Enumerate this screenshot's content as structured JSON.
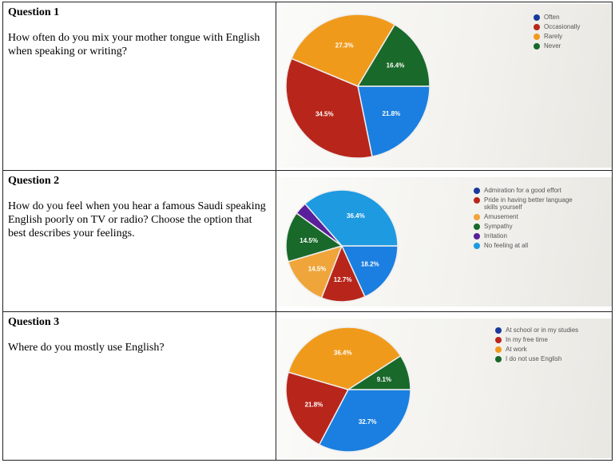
{
  "questions": [
    {
      "title": "Question 1",
      "text": "How often do you mix your mother tongue with English when speaking or writing?"
    },
    {
      "title": "Question 2",
      "text": "How do you feel when you hear a famous Saudi speaking English poorly on TV or radio? Choose the option that best describes your feelings."
    },
    {
      "title": "Question 3",
      "text": "Where do you mostly use English?"
    }
  ],
  "chart_data": [
    {
      "type": "pie",
      "legend": "top-right",
      "labels": [
        "Often",
        "Occasionally",
        "Rarely",
        "Never"
      ],
      "values": [
        21.8,
        34.5,
        27.3,
        16.4
      ],
      "data_labels": [
        "21.8%",
        "34.5%",
        "27.3%",
        "16.4%"
      ],
      "colors": [
        "#1a7fe0",
        "#b8261b",
        "#f09a1c",
        "#19692a"
      ],
      "legend_colors": [
        "#1a3a9c",
        "#b8261b",
        "#f09a1c",
        "#19692a"
      ]
    },
    {
      "type": "pie",
      "legend": "top-right",
      "labels": [
        "Admiration for a good effort",
        "Pride in having better language skills yourself",
        "Amusement",
        "Sympathy",
        "Irritation",
        "No feeling at all"
      ],
      "values": [
        18.2,
        12.7,
        14.5,
        14.5,
        3.6,
        36.4
      ],
      "data_labels": [
        "18.2%",
        "12.7%",
        "14.5%",
        "14.5%",
        "",
        "36.4%"
      ],
      "colors": [
        "#1a7fe0",
        "#b8261b",
        "#f0a53a",
        "#19692a",
        "#5a1f9a",
        "#1e9ae0"
      ],
      "legend_colors": [
        "#1a3a9c",
        "#b8261b",
        "#f0a53a",
        "#19692a",
        "#5a1f9a",
        "#1e9ae0"
      ]
    },
    {
      "type": "pie",
      "legend": "top-right",
      "labels": [
        "At school or in my studies",
        "In my free time",
        "At work",
        "I do not use English"
      ],
      "values": [
        32.7,
        21.8,
        36.4,
        9.1
      ],
      "data_labels": [
        "32.7%",
        "21.8%",
        "36.4%",
        "9.1%"
      ],
      "colors": [
        "#1a7fe0",
        "#b8261b",
        "#f09a1c",
        "#19692a"
      ],
      "legend_colors": [
        "#1a3a9c",
        "#b8261b",
        "#f09a1c",
        "#19692a"
      ]
    }
  ]
}
